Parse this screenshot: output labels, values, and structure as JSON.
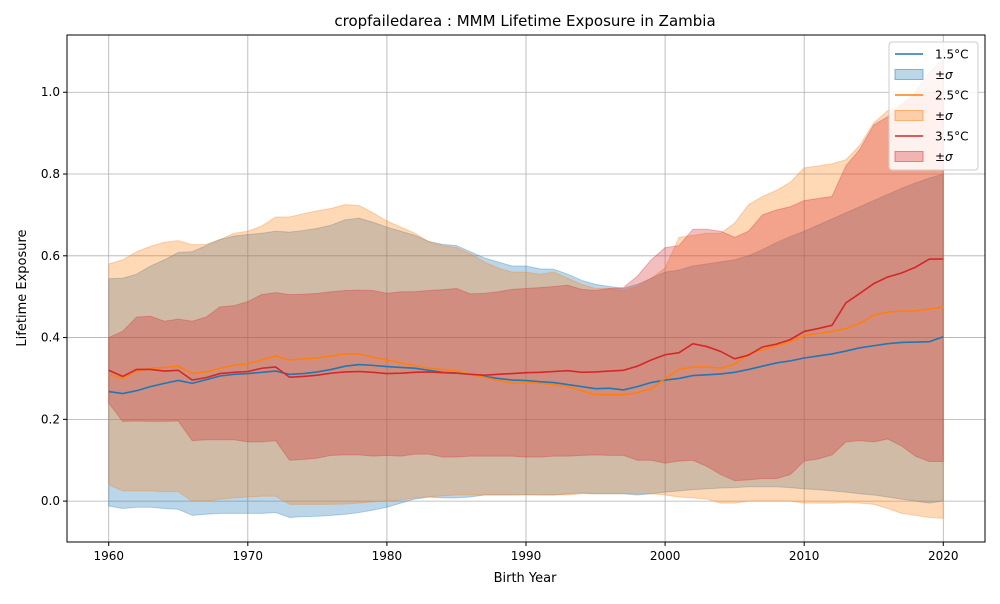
{
  "chart_data": {
    "type": "area",
    "title": "cropfailedarea : MMM Lifetime Exposure in Zambia",
    "xlabel": "Birth Year",
    "ylabel": "Lifetime Exposure",
    "xlim": [
      1957,
      2023
    ],
    "ylim": [
      -0.1,
      1.14
    ],
    "x_ticks": [
      1960,
      1970,
      1980,
      1990,
      2000,
      2010,
      2020
    ],
    "y_ticks": [
      0.0,
      0.2,
      0.4,
      0.6,
      0.8,
      1.0
    ],
    "x_tick_labels": [
      "1960",
      "1970",
      "1980",
      "1990",
      "2000",
      "2010",
      "2020"
    ],
    "y_tick_labels": [
      "0.0",
      "0.2",
      "0.4",
      "0.6",
      "0.8",
      "1.0"
    ],
    "grid": true,
    "legend_position": "top-right",
    "x": [
      1960,
      1961,
      1962,
      1963,
      1964,
      1965,
      1966,
      1967,
      1968,
      1969,
      1970,
      1971,
      1972,
      1973,
      1974,
      1975,
      1976,
      1977,
      1978,
      1979,
      1980,
      1981,
      1982,
      1983,
      1984,
      1985,
      1986,
      1987,
      1988,
      1989,
      1990,
      1991,
      1992,
      1993,
      1994,
      1995,
      1996,
      1997,
      1998,
      1999,
      2000,
      2001,
      2002,
      2003,
      2004,
      2005,
      2006,
      2007,
      2008,
      2009,
      2010,
      2011,
      2012,
      2013,
      2014,
      2015,
      2016,
      2017,
      2018,
      2019,
      2020
    ],
    "series": [
      {
        "name": "1.5°C",
        "band_label": "±σ",
        "color": "#1f77b4",
        "values": [
          0.268,
          0.263,
          0.27,
          0.28,
          0.288,
          0.295,
          0.288,
          0.297,
          0.306,
          0.31,
          0.312,
          0.315,
          0.318,
          0.31,
          0.312,
          0.316,
          0.322,
          0.33,
          0.334,
          0.332,
          0.329,
          0.327,
          0.325,
          0.32,
          0.315,
          0.313,
          0.31,
          0.305,
          0.3,
          0.296,
          0.295,
          0.292,
          0.29,
          0.285,
          0.28,
          0.275,
          0.276,
          0.272,
          0.28,
          0.29,
          0.296,
          0.3,
          0.307,
          0.309,
          0.311,
          0.315,
          0.322,
          0.33,
          0.338,
          0.343,
          0.35,
          0.355,
          0.36,
          0.367,
          0.375,
          0.38,
          0.385,
          0.388,
          0.389,
          0.39,
          0.402
        ],
        "upper": [
          0.544,
          0.545,
          0.555,
          0.575,
          0.59,
          0.608,
          0.61,
          0.625,
          0.64,
          0.648,
          0.652,
          0.655,
          0.66,
          0.658,
          0.662,
          0.667,
          0.675,
          0.688,
          0.692,
          0.682,
          0.67,
          0.66,
          0.65,
          0.635,
          0.628,
          0.625,
          0.61,
          0.595,
          0.585,
          0.575,
          0.575,
          0.568,
          0.567,
          0.555,
          0.54,
          0.53,
          0.525,
          0.52,
          0.53,
          0.545,
          0.56,
          0.565,
          0.575,
          0.58,
          0.585,
          0.59,
          0.6,
          0.615,
          0.632,
          0.647,
          0.66,
          0.675,
          0.69,
          0.705,
          0.72,
          0.735,
          0.75,
          0.765,
          0.778,
          0.79,
          0.8
        ],
        "lower": [
          -0.012,
          -0.018,
          -0.015,
          -0.015,
          -0.018,
          -0.02,
          -0.035,
          -0.032,
          -0.03,
          -0.03,
          -0.03,
          -0.03,
          -0.028,
          -0.04,
          -0.038,
          -0.037,
          -0.035,
          -0.032,
          -0.028,
          -0.022,
          -0.015,
          -0.005,
          0.005,
          0.01,
          0.008,
          0.008,
          0.01,
          0.015,
          0.015,
          0.015,
          0.016,
          0.015,
          0.015,
          0.018,
          0.02,
          0.018,
          0.018,
          0.018,
          0.015,
          0.018,
          0.022,
          0.025,
          0.028,
          0.03,
          0.032,
          0.033,
          0.035,
          0.035,
          0.035,
          0.033,
          0.03,
          0.028,
          0.025,
          0.022,
          0.018,
          0.015,
          0.01,
          0.005,
          0.0,
          -0.005,
          0.0
        ]
      },
      {
        "name": "2.5°C",
        "band_label": "±σ",
        "color": "#ff7f0e",
        "values": [
          0.31,
          0.3,
          0.318,
          0.325,
          0.327,
          0.33,
          0.312,
          0.316,
          0.325,
          0.332,
          0.336,
          0.345,
          0.355,
          0.345,
          0.348,
          0.35,
          0.355,
          0.36,
          0.36,
          0.352,
          0.345,
          0.338,
          0.332,
          0.325,
          0.322,
          0.318,
          0.31,
          0.303,
          0.295,
          0.288,
          0.29,
          0.288,
          0.285,
          0.28,
          0.27,
          0.26,
          0.26,
          0.26,
          0.265,
          0.275,
          0.3,
          0.322,
          0.328,
          0.328,
          0.325,
          0.335,
          0.36,
          0.37,
          0.38,
          0.39,
          0.405,
          0.41,
          0.415,
          0.422,
          0.435,
          0.455,
          0.462,
          0.465,
          0.465,
          0.47,
          0.475
        ],
        "upper": [
          0.58,
          0.59,
          0.61,
          0.623,
          0.633,
          0.637,
          0.627,
          0.628,
          0.64,
          0.655,
          0.66,
          0.673,
          0.695,
          0.695,
          0.703,
          0.71,
          0.716,
          0.725,
          0.723,
          0.705,
          0.685,
          0.67,
          0.655,
          0.635,
          0.625,
          0.62,
          0.605,
          0.585,
          0.57,
          0.56,
          0.56,
          0.555,
          0.56,
          0.545,
          0.53,
          0.52,
          0.52,
          0.515,
          0.525,
          0.545,
          0.57,
          0.645,
          0.65,
          0.655,
          0.655,
          0.68,
          0.725,
          0.745,
          0.76,
          0.78,
          0.815,
          0.82,
          0.825,
          0.835,
          0.87,
          0.925,
          0.955,
          0.97,
          0.99,
          1.0,
          1.0
        ],
        "lower": [
          0.04,
          0.025,
          0.025,
          0.025,
          0.023,
          0.023,
          0.0,
          0.0,
          0.005,
          0.008,
          0.01,
          0.012,
          0.012,
          -0.008,
          -0.008,
          -0.008,
          -0.008,
          -0.007,
          -0.005,
          -0.002,
          0.0,
          0.003,
          0.008,
          0.01,
          0.013,
          0.015,
          0.015,
          0.015,
          0.015,
          0.015,
          0.015,
          0.015,
          0.015,
          0.015,
          0.018,
          0.018,
          0.018,
          0.018,
          0.018,
          0.018,
          0.015,
          0.01,
          0.008,
          0.005,
          -0.005,
          -0.005,
          0.0,
          0.0,
          0.0,
          0.0,
          -0.005,
          -0.005,
          -0.005,
          -0.003,
          -0.005,
          -0.008,
          -0.018,
          -0.03,
          -0.035,
          -0.04,
          -0.042
        ]
      },
      {
        "name": "3.5°C",
        "band_label": "±σ",
        "color": "#d62728",
        "values": [
          0.32,
          0.305,
          0.322,
          0.322,
          0.318,
          0.32,
          0.296,
          0.302,
          0.312,
          0.315,
          0.317,
          0.325,
          0.328,
          0.303,
          0.305,
          0.308,
          0.313,
          0.316,
          0.317,
          0.315,
          0.312,
          0.313,
          0.315,
          0.316,
          0.314,
          0.313,
          0.31,
          0.308,
          0.31,
          0.312,
          0.314,
          0.315,
          0.317,
          0.319,
          0.315,
          0.316,
          0.318,
          0.32,
          0.33,
          0.345,
          0.358,
          0.363,
          0.385,
          0.378,
          0.366,
          0.348,
          0.357,
          0.377,
          0.384,
          0.395,
          0.415,
          0.422,
          0.43,
          0.485,
          0.508,
          0.532,
          0.548,
          0.558,
          0.572,
          0.592,
          0.592
        ],
        "upper": [
          0.4,
          0.415,
          0.45,
          0.452,
          0.44,
          0.445,
          0.44,
          0.45,
          0.475,
          0.478,
          0.488,
          0.505,
          0.51,
          0.505,
          0.506,
          0.508,
          0.512,
          0.515,
          0.516,
          0.515,
          0.508,
          0.512,
          0.512,
          0.515,
          0.517,
          0.52,
          0.507,
          0.508,
          0.512,
          0.518,
          0.52,
          0.522,
          0.525,
          0.528,
          0.518,
          0.515,
          0.52,
          0.522,
          0.55,
          0.59,
          0.62,
          0.625,
          0.665,
          0.665,
          0.66,
          0.645,
          0.66,
          0.7,
          0.712,
          0.72,
          0.735,
          0.74,
          0.745,
          0.82,
          0.86,
          0.92,
          0.94,
          0.97,
          1.0,
          1.05,
          1.08
        ],
        "lower": [
          0.24,
          0.195,
          0.196,
          0.195,
          0.195,
          0.196,
          0.148,
          0.15,
          0.15,
          0.15,
          0.145,
          0.145,
          0.148,
          0.1,
          0.102,
          0.105,
          0.112,
          0.113,
          0.113,
          0.11,
          0.112,
          0.11,
          0.115,
          0.115,
          0.108,
          0.108,
          0.11,
          0.11,
          0.11,
          0.11,
          0.108,
          0.108,
          0.11,
          0.11,
          0.112,
          0.113,
          0.112,
          0.112,
          0.1,
          0.1,
          0.093,
          0.098,
          0.1,
          0.085,
          0.065,
          0.05,
          0.052,
          0.055,
          0.055,
          0.065,
          0.098,
          0.103,
          0.113,
          0.145,
          0.148,
          0.145,
          0.152,
          0.135,
          0.11,
          0.097,
          0.097
        ]
      }
    ]
  }
}
